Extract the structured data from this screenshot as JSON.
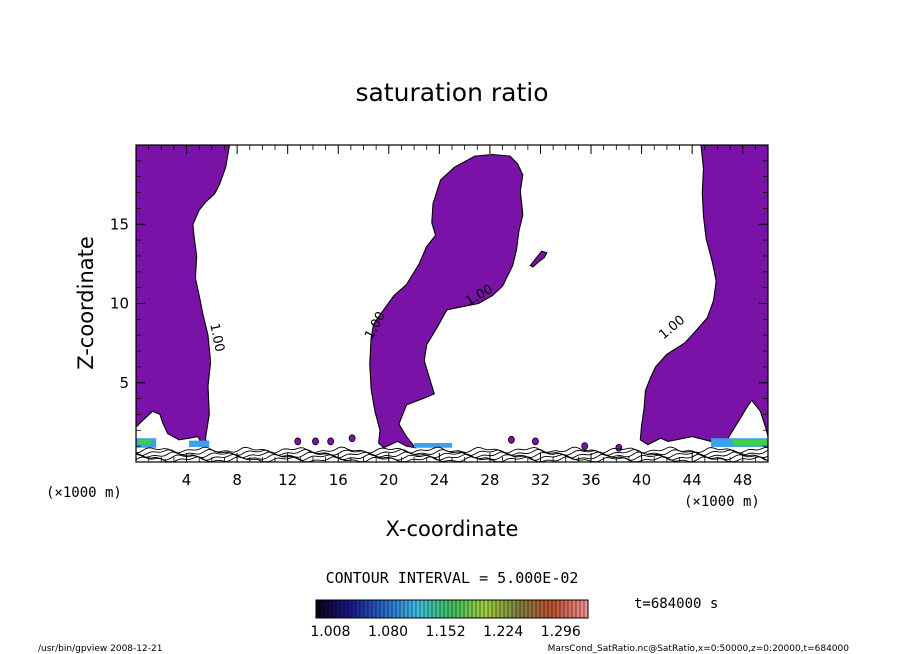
{
  "chart_data": {
    "type": "heatmap",
    "title": "saturation ratio",
    "xlabel": "X-coordinate",
    "ylabel": "Z-coordinate",
    "x_unit": "(×1000 m)",
    "y_unit": "(×1000 m)",
    "xlim": [
      0,
      50
    ],
    "ylim": [
      0,
      20
    ],
    "x_ticks": [
      "4",
      "8",
      "12",
      "16",
      "20",
      "24",
      "28",
      "32",
      "36",
      "40",
      "44",
      "48"
    ],
    "x_tick_values": [
      4,
      8,
      12,
      16,
      20,
      24,
      28,
      32,
      36,
      40,
      44,
      48
    ],
    "y_ticks": [
      "5",
      "10",
      "15"
    ],
    "y_tick_values": [
      5,
      10,
      15
    ],
    "contour_interval": "CONTOUR INTERVAL = 5.000E-02",
    "contour_labels": [
      {
        "text": "1.00",
        "x": 6.1,
        "z": 7.8,
        "angle": 78
      },
      {
        "text": "1.00",
        "x": 19.2,
        "z": 8.5,
        "angle": -62
      },
      {
        "text": "1.00",
        "x": 27.3,
        "z": 10.3,
        "angle": -30
      },
      {
        "text": "1.00",
        "x": 42.6,
        "z": 8.3,
        "angle": -40
      }
    ],
    "colorbar": {
      "range": [
        0.99,
        1.33
      ],
      "tick_labels": [
        "1.008",
        "1.080",
        "1.152",
        "1.224",
        "1.296"
      ],
      "tick_values": [
        1.008,
        1.08,
        1.152,
        1.224,
        1.296
      ],
      "colors": [
        "#100020",
        "#1a1a8a",
        "#2a6ad0",
        "#40c0e0",
        "#40c060",
        "#a0d040",
        "#808040",
        "#c05030",
        "#f09090"
      ]
    },
    "colors": {
      "supersaturated_fill": "#7a12a8",
      "high_band": "#3aa0f0",
      "green_band": "#40d040",
      "contour_line": "#000000"
    },
    "regions": [
      {
        "name": "left plume",
        "polygon": [
          [
            0,
            0
          ],
          [
            0,
            20
          ],
          [
            7.4,
            20
          ],
          [
            7.1,
            18.6
          ],
          [
            6.6,
            17.5
          ],
          [
            6.2,
            16.9
          ],
          [
            5.5,
            16.4
          ],
          [
            5.0,
            15.9
          ],
          [
            4.5,
            15.0
          ],
          [
            4.6,
            14.2
          ],
          [
            4.8,
            13.0
          ],
          [
            4.7,
            11.6
          ],
          [
            5.0,
            10.5
          ],
          [
            5.3,
            9.3
          ],
          [
            5.7,
            8.0
          ],
          [
            5.9,
            6.3
          ],
          [
            5.7,
            4.8
          ],
          [
            5.8,
            3.0
          ],
          [
            5.5,
            1.5
          ],
          [
            5.6,
            1.1
          ],
          [
            5.3,
            1.0
          ],
          [
            4.9,
            1.6
          ],
          [
            4.2,
            1.5
          ],
          [
            3.4,
            1.4
          ],
          [
            2.5,
            1.8
          ],
          [
            2.1,
            2.5
          ],
          [
            1.9,
            3.0
          ],
          [
            1.3,
            3.2
          ],
          [
            0.5,
            2.6
          ],
          [
            0,
            2.2
          ]
        ]
      },
      {
        "name": "central plume",
        "polygon": [
          [
            22.1,
            0.9
          ],
          [
            21.4,
            1.6
          ],
          [
            20.8,
            2.4
          ],
          [
            21.4,
            3.6
          ],
          [
            22.7,
            4.0
          ],
          [
            23.6,
            4.3
          ],
          [
            23.1,
            5.6
          ],
          [
            22.8,
            6.4
          ],
          [
            23.0,
            7.4
          ],
          [
            23.9,
            8.6
          ],
          [
            24.6,
            9.6
          ],
          [
            25.8,
            9.8
          ],
          [
            27.1,
            10.0
          ],
          [
            28.2,
            10.5
          ],
          [
            29.0,
            11.1
          ],
          [
            29.8,
            12.4
          ],
          [
            30.1,
            13.4
          ],
          [
            30.3,
            14.6
          ],
          [
            30.6,
            15.6
          ],
          [
            30.5,
            16.4
          ],
          [
            30.4,
            17.1
          ],
          [
            30.6,
            18.1
          ],
          [
            30.2,
            18.8
          ],
          [
            29.6,
            19.3
          ],
          [
            28.2,
            19.4
          ],
          [
            26.8,
            19.3
          ],
          [
            25.2,
            18.6
          ],
          [
            24.1,
            17.8
          ],
          [
            23.5,
            16.3
          ],
          [
            23.4,
            15.1
          ],
          [
            23.7,
            14.3
          ],
          [
            23.0,
            13.6
          ],
          [
            22.4,
            12.5
          ],
          [
            21.4,
            11.2
          ],
          [
            20.4,
            10.5
          ],
          [
            19.6,
            9.6
          ],
          [
            18.8,
            8.7
          ],
          [
            18.6,
            7.8
          ],
          [
            18.5,
            6.2
          ],
          [
            18.6,
            4.6
          ],
          [
            18.9,
            3.2
          ],
          [
            19.3,
            2.0
          ],
          [
            19.2,
            1.2
          ],
          [
            19.6,
            0.9
          ],
          [
            20.7,
            1.3
          ],
          [
            21.4,
            1.0
          ]
        ]
      },
      {
        "name": "right plume",
        "polygon": [
          [
            50,
            0
          ],
          [
            50,
            20
          ],
          [
            44.7,
            20
          ],
          [
            44.9,
            18.5
          ],
          [
            44.8,
            17.0
          ],
          [
            44.9,
            15.5
          ],
          [
            45.1,
            14.1
          ],
          [
            45.6,
            12.6
          ],
          [
            45.9,
            11.4
          ],
          [
            45.7,
            10.2
          ],
          [
            45.2,
            9.1
          ],
          [
            44.1,
            8.1
          ],
          [
            43.4,
            7.5
          ],
          [
            42.0,
            6.8
          ],
          [
            41.1,
            6.0
          ],
          [
            40.7,
            5.3
          ],
          [
            40.3,
            4.5
          ],
          [
            40.2,
            3.4
          ],
          [
            40.0,
            2.3
          ],
          [
            39.9,
            1.4
          ],
          [
            40.5,
            1.1
          ],
          [
            41.5,
            1.5
          ],
          [
            42.1,
            1.3
          ],
          [
            44.0,
            1.6
          ],
          [
            45.5,
            1.3
          ],
          [
            46.6,
            1.2
          ],
          [
            47.3,
            2.1
          ],
          [
            48.3,
            3.4
          ],
          [
            48.7,
            3.9
          ],
          [
            49.4,
            3.2
          ],
          [
            49.8,
            2.2
          ],
          [
            50,
            1.6
          ]
        ]
      },
      {
        "name": "small blob",
        "polygon": [
          [
            31.4,
            12.3
          ],
          [
            31.8,
            12.6
          ],
          [
            32.3,
            12.9
          ],
          [
            32.5,
            13.2
          ],
          [
            32.1,
            13.3
          ],
          [
            31.7,
            12.9
          ],
          [
            31.2,
            12.4
          ]
        ]
      }
    ]
  },
  "axis_units": {
    "x": "(×1000 m)",
    "y": "(×1000 m)"
  },
  "annotations": {
    "time": "t=684000 s",
    "footer_left": "/usr/bin/gpview   2008-12-21",
    "footer_right": "MarsCond_SatRatio.nc@SatRatio,x=0:50000,z=0:20000,t=684000"
  }
}
